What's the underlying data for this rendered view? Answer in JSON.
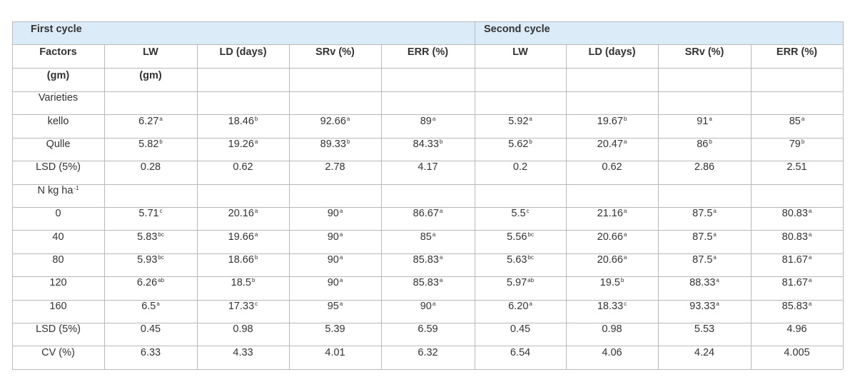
{
  "header": {
    "first_cycle": "First cycle",
    "second_cycle": "Second cycle"
  },
  "columns": [
    "Factors",
    "LW",
    "LD (days)",
    "SRv (%)",
    "ERR (%)",
    "LW",
    "LD (days)",
    "SRv (%)",
    "ERR (%)"
  ],
  "units": [
    "(gm)",
    "(gm)"
  ],
  "rows": [
    {
      "label": "Varieties"
    },
    {
      "label": "kello",
      "cells": [
        {
          "text": "6.27",
          "sup": "a"
        },
        {
          "text": "18.46",
          "sup": "b"
        },
        {
          "text": "92.66",
          "sup": "a"
        },
        {
          "text": "89",
          "sup": "a"
        },
        {
          "text": "5.92",
          "sup": "a"
        },
        {
          "text": "19.67",
          "sup": "b"
        },
        {
          "text": "91",
          "sup": "a"
        },
        {
          "text": "85",
          "sup": "a"
        }
      ]
    },
    {
      "label": "Qulle",
      "cells": [
        {
          "text": "5.82",
          "sup": "b"
        },
        {
          "text": "19.26",
          "sup": "a"
        },
        {
          "text": "89.33",
          "sup": "b"
        },
        {
          "text": "84.33",
          "sup": "b"
        },
        {
          "text": "5.62",
          "sup": "b"
        },
        {
          "text": "20.47",
          "sup": "a"
        },
        {
          "text": "86",
          "sup": "b"
        },
        {
          "text": "79",
          "sup": "b"
        }
      ]
    },
    {
      "label": "LSD (5%)",
      "cells": [
        "0.28",
        "0.62",
        "2.78",
        "4.17",
        "0.2",
        "0.62",
        "2.86",
        "2.51"
      ]
    },
    {
      "label": {
        "text": "N kg ha",
        "sup": "-1"
      }
    },
    {
      "label": "0",
      "cells": [
        {
          "text": "5.71",
          "sup": "c"
        },
        {
          "text": "20.16",
          "sup": "a"
        },
        {
          "text": "90",
          "sup": "a"
        },
        {
          "text": "86.67",
          "sup": "a"
        },
        {
          "text": "5.5",
          "sup": "c"
        },
        {
          "text": "21.16",
          "sup": "a"
        },
        {
          "text": "87.5",
          "sup": "a"
        },
        {
          "text": "80.83",
          "sup": "a"
        }
      ]
    },
    {
      "label": "40",
      "cells": [
        {
          "text": "5.83",
          "sup": "bc"
        },
        {
          "text": "19.66",
          "sup": "a"
        },
        {
          "text": "90",
          "sup": "a"
        },
        {
          "text": "85",
          "sup": "a"
        },
        {
          "text": "5.56",
          "sup": "bc"
        },
        {
          "text": "20.66",
          "sup": "a"
        },
        {
          "text": "87.5",
          "sup": "a"
        },
        {
          "text": "80.83",
          "sup": "a"
        }
      ]
    },
    {
      "label": "80",
      "cells": [
        {
          "text": "5.93",
          "sup": "bc"
        },
        {
          "text": "18.66",
          "sup": "b"
        },
        {
          "text": "90",
          "sup": "a"
        },
        {
          "text": "85.83",
          "sup": "a"
        },
        {
          "text": "5.63",
          "sup": "bc"
        },
        {
          "text": "20.66",
          "sup": "a"
        },
        {
          "text": "87.5",
          "sup": "a"
        },
        {
          "text": "81.67",
          "sup": "a"
        }
      ]
    },
    {
      "label": "120",
      "cells": [
        {
          "text": "6.26",
          "sup": "ab"
        },
        {
          "text": "18.5",
          "sup": "b"
        },
        {
          "text": "90",
          "sup": "a"
        },
        {
          "text": "85.83",
          "sup": "a"
        },
        {
          "text": "5.97",
          "sup": "ab"
        },
        {
          "text": "19.5",
          "sup": "b"
        },
        {
          "text": "88.33",
          "sup": "a"
        },
        {
          "text": "81.67",
          "sup": "a"
        }
      ]
    },
    {
      "label": "160",
      "cells": [
        {
          "text": "6.5",
          "sup": "a"
        },
        {
          "text": "17.33",
          "sup": "c"
        },
        {
          "text": "95",
          "sup": "a"
        },
        {
          "text": "90",
          "sup": "a"
        },
        {
          "text": "6.20",
          "sup": "a"
        },
        {
          "text": "18.33",
          "sup": "c"
        },
        {
          "text": "93.33",
          "sup": "a"
        },
        {
          "text": "85.83",
          "sup": "a"
        }
      ]
    },
    {
      "label": "LSD (5%)",
      "cells": [
        "0.45",
        "0.98",
        "5.39",
        "6.59",
        "0.45",
        "0.98",
        "5.53",
        "4.96"
      ]
    },
    {
      "label": "CV (%)",
      "cells": [
        "6.33",
        "4.33",
        "4.01",
        "6.32",
        "6.54",
        "4.06",
        "4.24",
        "4.005"
      ]
    }
  ]
}
